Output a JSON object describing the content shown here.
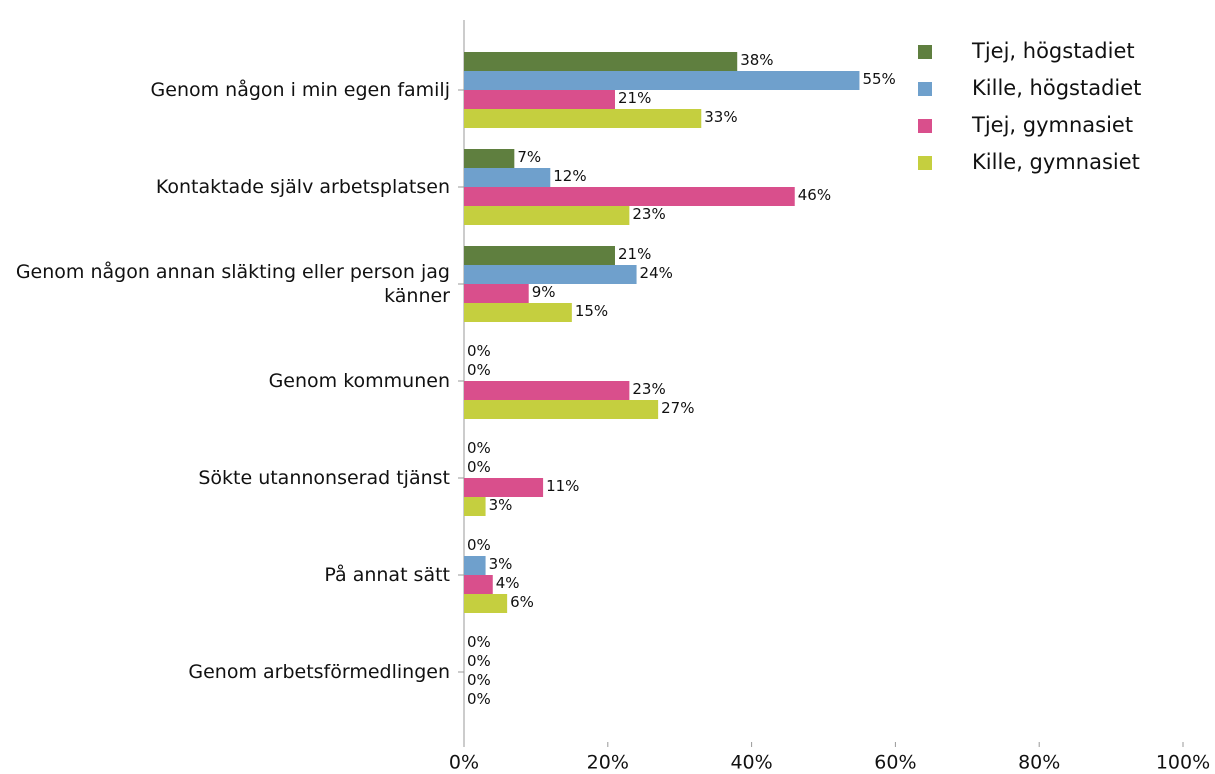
{
  "chart_data": {
    "type": "bar",
    "orientation": "horizontal",
    "categories": [
      "Genom någon i min egen familj",
      "Kontaktade själv arbetsplatsen",
      "Genom någon annan släkting eller person jag känner",
      "Genom kommunen",
      "Sökte utannonserad tjänst",
      "På annat sätt",
      "Genom arbetsförmedlingen"
    ],
    "series": [
      {
        "name": "Tjej, högstadiet",
        "color": "#5f7f3f",
        "values": [
          38,
          7,
          21,
          0,
          0,
          0,
          0
        ],
        "value_labels": [
          "38%",
          "7%",
          "21%",
          "0%",
          "0%",
          "0%",
          "0%"
        ]
      },
      {
        "name": "Kille, högstadiet",
        "color": "#6fa0cc",
        "values": [
          55,
          12,
          24,
          0,
          0,
          3,
          0
        ],
        "value_labels": [
          "55%",
          "12%",
          "24%",
          "0%",
          "0%",
          "3%",
          "0%"
        ]
      },
      {
        "name": "Tjej, gymnasiet",
        "color": "#d94f8c",
        "values": [
          21,
          46,
          9,
          23,
          11,
          4,
          0
        ],
        "value_labels": [
          "21%",
          "46%",
          "9%",
          "23%",
          "11%",
          "4%",
          "0%"
        ]
      },
      {
        "name": "Kille, gymnasiet",
        "color": "#c5cf3f",
        "values": [
          33,
          23,
          15,
          27,
          3,
          6,
          0
        ],
        "value_labels": [
          "33%",
          "23%",
          "15%",
          "27%",
          "3%",
          "6%",
          "0%"
        ]
      }
    ],
    "xlim": [
      0,
      100
    ],
    "xticks": [
      {
        "value": 0,
        "label": "0%"
      },
      {
        "value": 20,
        "label": "20%"
      },
      {
        "value": 40,
        "label": "40%"
      },
      {
        "value": 60,
        "label": "60%"
      },
      {
        "value": 80,
        "label": "80%"
      },
      {
        "value": 100,
        "label": "100%"
      }
    ],
    "grid": false,
    "legend": "upper right"
  }
}
